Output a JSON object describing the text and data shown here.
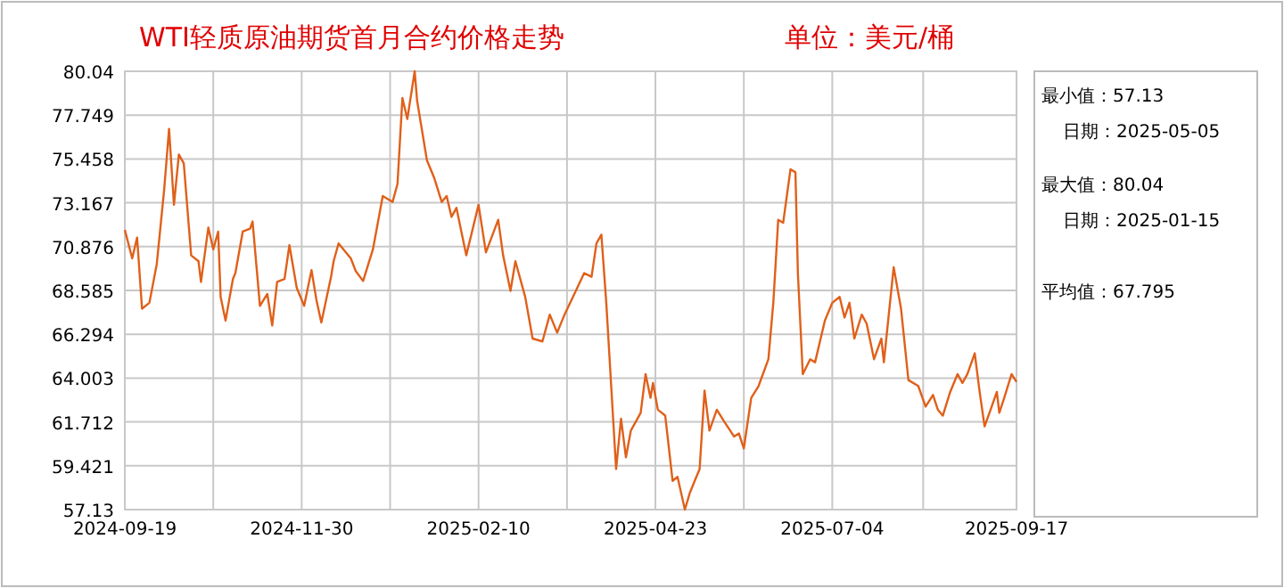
{
  "chart_data": {
    "type": "line",
    "title": "WTI轻质原油期货首月合约价格走势",
    "subtitle": "单位：美元/桶",
    "x": [
      "2024-09-19",
      "2024-09-22",
      "2024-09-24",
      "2024-09-26",
      "2024-09-29",
      "2024-10-02",
      "2024-10-05",
      "2024-10-07",
      "2024-10-09",
      "2024-10-11",
      "2024-10-13",
      "2024-10-16",
      "2024-10-19",
      "2024-10-20",
      "2024-10-23",
      "2024-10-25",
      "2024-10-27",
      "2024-10-28",
      "2024-10-30",
      "2024-11-02",
      "2024-11-03",
      "2024-11-06",
      "2024-11-09",
      "2024-11-10",
      "2024-11-13",
      "2024-11-16",
      "2024-11-18",
      "2024-11-20",
      "2024-11-23",
      "2024-11-25",
      "2024-11-28",
      "2024-12-01",
      "2024-12-04",
      "2024-12-06",
      "2024-12-08",
      "2024-12-12",
      "2024-12-13",
      "2024-12-15",
      "2024-12-20",
      "2024-12-22",
      "2024-12-25",
      "2024-12-29",
      "2025-01-02",
      "2025-01-06",
      "2025-01-08",
      "2025-01-10",
      "2025-01-12",
      "2025-01-15",
      "2025-01-16",
      "2025-01-20",
      "2025-01-23",
      "2025-01-26",
      "2025-01-28",
      "2025-01-30",
      "2025-02-01",
      "2025-02-05",
      "2025-02-10",
      "2025-02-13",
      "2025-02-18",
      "2025-02-20",
      "2025-02-23",
      "2025-02-25",
      "2025-03-01",
      "2025-03-04",
      "2025-03-08",
      "2025-03-11",
      "2025-03-14",
      "2025-03-17",
      "2025-03-21",
      "2025-03-25",
      "2025-03-28",
      "2025-03-30",
      "2025-04-01",
      "2025-04-03",
      "2025-04-05",
      "2025-04-07",
      "2025-04-09",
      "2025-04-11",
      "2025-04-13",
      "2025-04-17",
      "2025-04-19",
      "2025-04-21",
      "2025-04-22",
      "2025-04-24",
      "2025-04-27",
      "2025-04-30",
      "2025-05-02",
      "2025-05-05",
      "2025-05-07",
      "2025-05-09",
      "2025-05-11",
      "2025-05-13",
      "2025-05-15",
      "2025-05-18",
      "2025-05-21",
      "2025-05-25",
      "2025-05-27",
      "2025-05-29",
      "2025-06-01",
      "2025-06-04",
      "2025-06-08",
      "2025-06-10",
      "2025-06-12",
      "2025-06-14",
      "2025-06-17",
      "2025-06-19",
      "2025-06-20",
      "2025-06-22",
      "2025-06-25",
      "2025-06-27",
      "2025-07-01",
      "2025-07-04",
      "2025-07-07",
      "2025-07-09",
      "2025-07-11",
      "2025-07-13",
      "2025-07-16",
      "2025-07-18",
      "2025-07-21",
      "2025-07-24",
      "2025-07-25",
      "2025-07-29",
      "2025-08-01",
      "2025-08-04",
      "2025-08-08",
      "2025-08-11",
      "2025-08-14",
      "2025-08-16",
      "2025-08-18",
      "2025-08-21",
      "2025-08-24",
      "2025-08-26",
      "2025-08-28",
      "2025-08-31",
      "2025-09-02",
      "2025-09-04",
      "2025-09-06",
      "2025-09-09",
      "2025-09-10",
      "2025-09-12",
      "2025-09-15",
      "2025-09-17"
    ],
    "series": [
      {
        "color": "#e0601a",
        "values": [
          71.75,
          70.26,
          71.35,
          67.63,
          67.94,
          69.96,
          73.83,
          77.03,
          73.06,
          75.69,
          75.23,
          70.42,
          70.11,
          69.03,
          71.87,
          70.73,
          71.66,
          68.25,
          67.01,
          69.18,
          69.49,
          71.66,
          71.82,
          72.19,
          67.78,
          68.4,
          66.75,
          69.03,
          69.18,
          70.95,
          68.71,
          67.78,
          69.65,
          68.09,
          66.91,
          69.33,
          70.11,
          71.04,
          70.26,
          69.6,
          69.08,
          70.73,
          73.52,
          73.21,
          74.15,
          78.64,
          77.55,
          80.04,
          78.49,
          75.38,
          74.45,
          73.21,
          73.52,
          72.43,
          72.9,
          70.42,
          73.06,
          70.57,
          72.28,
          70.42,
          68.56,
          70.11,
          68.24,
          66.07,
          65.92,
          67.32,
          66.38,
          67.32,
          68.4,
          69.49,
          69.3,
          71.04,
          71.5,
          67.94,
          63.59,
          59.25,
          61.88,
          59.86,
          61.26,
          62.19,
          64.21,
          62.97,
          63.75,
          62.35,
          62.04,
          58.63,
          58.84,
          57.13,
          58.0,
          58.63,
          59.25,
          63.35,
          61.26,
          62.35,
          61.73,
          60.95,
          61.11,
          60.33,
          62.97,
          63.59,
          64.99,
          67.94,
          72.28,
          72.12,
          74.92,
          74.76,
          69.49,
          64.21,
          64.99,
          64.83,
          67.01,
          67.94,
          68.25,
          67.17,
          67.94,
          66.07,
          67.32,
          66.85,
          64.99,
          66.07,
          64.83,
          69.8,
          67.63,
          63.9,
          63.59,
          62.51,
          63.12,
          62.35,
          62.04,
          63.28,
          64.21,
          63.75,
          64.21,
          65.3,
          63.28,
          61.48,
          62.19,
          63.28,
          62.19,
          62.97,
          64.21,
          63.81
        ]
      }
    ],
    "xlim": [
      "2024-09-19",
      "2025-09-17"
    ],
    "xticks": [
      "2024-09-19",
      {
        "value": "2024-10-25",
        "label": null
      },
      "2024-11-30",
      {
        "value": "2025-01-05",
        "label": null
      },
      "2025-02-10",
      {
        "value": "2025-03-18",
        "label": null
      },
      "2025-04-23",
      {
        "value": "2025-05-29",
        "label": null
      },
      "2025-07-04",
      {
        "value": "2025-08-10",
        "label": null
      },
      "2025-09-17"
    ],
    "ylim": [
      57.13,
      80.04
    ],
    "yticks": [
      57.13,
      59.421,
      61.712,
      64.003,
      66.294,
      68.585,
      70.876,
      73.167,
      75.458,
      77.749,
      80.04
    ],
    "grid": true,
    "marker": "none",
    "line_style": "solid",
    "annotations": [
      "最小值：57.13",
      "日期：2025-05-05",
      "最大值：80.04",
      "日期：2025-01-15",
      "平均值：67.795"
    ]
  }
}
